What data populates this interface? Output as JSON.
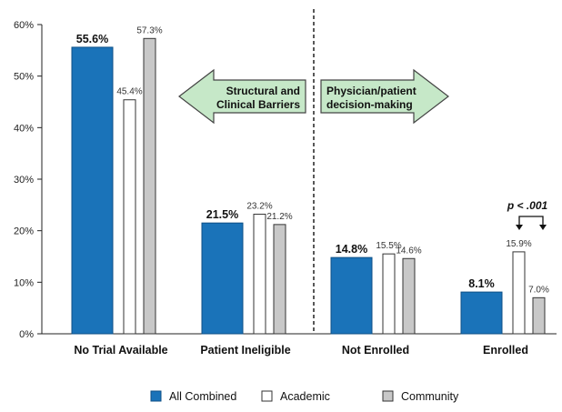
{
  "chart_data": {
    "type": "bar",
    "categories": [
      "No Trial Available",
      "Patient Ineligible",
      "Not Enrolled",
      "Enrolled"
    ],
    "series": [
      {
        "name": "All Combined",
        "values": [
          55.6,
          21.5,
          14.8,
          8.1
        ],
        "labels": [
          "55.6%",
          "21.5%",
          "14.8%",
          "8.1%"
        ],
        "color": "#1a73b9"
      },
      {
        "name": "Academic",
        "values": [
          45.4,
          23.2,
          15.5,
          15.9
        ],
        "labels": [
          "45.4%",
          "23.2%",
          "15.5%",
          "15.9%"
        ],
        "color": "#ffffff"
      },
      {
        "name": "Community",
        "values": [
          57.3,
          21.2,
          14.6,
          7.0
        ],
        "labels": [
          "57.3%",
          "21.2%",
          "14.6%",
          "7.0%"
        ],
        "color": "#c8c8c8"
      }
    ],
    "y_ticks": [
      "0%",
      "10%",
      "20%",
      "30%",
      "40%",
      "50%",
      "60%"
    ],
    "y_tick_values": [
      0,
      10,
      20,
      30,
      40,
      50,
      60
    ],
    "ylim": [
      0,
      60
    ],
    "grid": false,
    "legend_position": "bottom",
    "annotations": {
      "left_arrow": {
        "lines": [
          "Structural and",
          "Clinical Barriers"
        ],
        "fill": "#c6e8c8"
      },
      "right_arrow": {
        "lines": [
          "Physician/patient",
          "decision-making"
        ],
        "fill": "#c6e8c8"
      },
      "significance": "p < .001"
    }
  }
}
